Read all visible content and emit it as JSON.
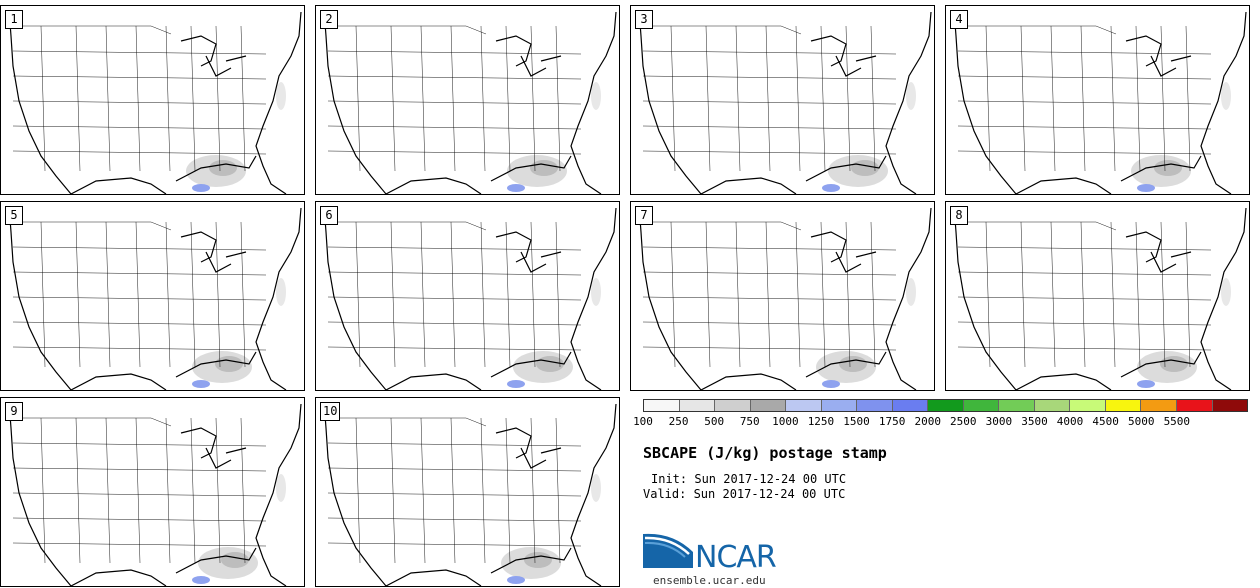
{
  "panels": [
    {
      "label": "1"
    },
    {
      "label": "2"
    },
    {
      "label": "3"
    },
    {
      "label": "4"
    },
    {
      "label": "5"
    },
    {
      "label": "6"
    },
    {
      "label": "7"
    },
    {
      "label": "8"
    },
    {
      "label": "9"
    },
    {
      "label": "10"
    }
  ],
  "legend": {
    "tick_labels": [
      "100",
      "250",
      "500",
      "750",
      "1000",
      "1250",
      "1500",
      "1750",
      "2000",
      "2500",
      "3000",
      "3500",
      "4000",
      "4500",
      "5000",
      "5500"
    ],
    "colors": [
      "#f7f7f7",
      "#e6e6e6",
      "#cfcfcf",
      "#a9a9a9",
      "#bcc8f2",
      "#9aaef0",
      "#7f92ee",
      "#6a7df0",
      "#129a1d",
      "#40b63c",
      "#72cc57",
      "#a8d77a",
      "#c8fa78",
      "#f8f50e",
      "#f39b12",
      "#e8131a",
      "#8f0a0a"
    ]
  },
  "title": "SBCAPE (J/kg) postage stamp",
  "init": "Init: Sun 2017-12-24 00 UTC",
  "valid": "Valid: Sun 2017-12-24 00 UTC",
  "logo": {
    "text": "NCAR",
    "site": "ensemble.ucar.edu",
    "colors": {
      "blue": "#1565a8",
      "light_blue": "#5aa0d8"
    }
  }
}
